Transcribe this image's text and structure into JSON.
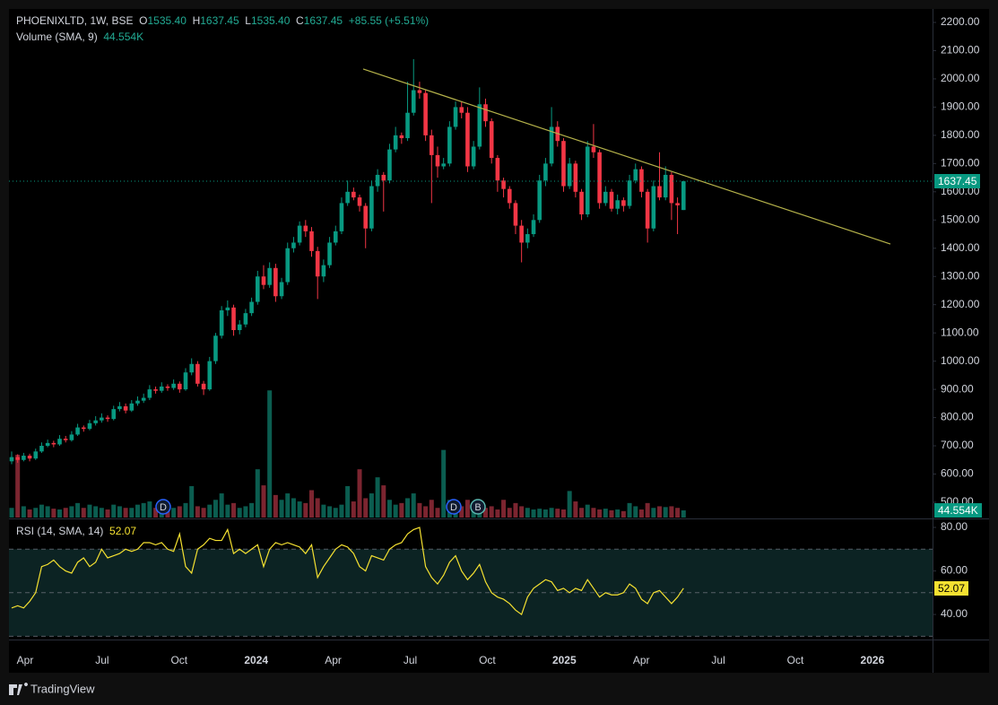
{
  "chart_data": {
    "type": "candlestick",
    "header": {
      "symbol": "PHOENIXLTD, 1W, BSE",
      "o": "O",
      "open": "1535.40",
      "h": "H",
      "high": "1637.45",
      "l": "L",
      "low": "1535.40",
      "c": "C",
      "close": "1637.45",
      "change": "+85.55 (+5.51%)"
    },
    "volume_label": "Volume (SMA, 9)",
    "volume_value_label": "44.554K",
    "rsi_label": "RSI (14, SMA, 14)",
    "x_labels": [
      "Apr",
      "Jul",
      "Oct",
      "2024",
      "Apr",
      "Jul",
      "Oct",
      "2025",
      "Apr",
      "Jul",
      "Oct",
      "2026"
    ],
    "event_markers": [
      "D",
      "D",
      "B"
    ],
    "footer": "TradingView",
    "ylim": [
      445.9,
      2247.7
    ],
    "yticks": [
      {
        "value": 2200,
        "label": "2200.00"
      },
      {
        "value": 2100,
        "label": "2100.00"
      },
      {
        "value": 2000,
        "label": "2000.00"
      },
      {
        "value": 1900,
        "label": "1900.00"
      },
      {
        "value": 1800,
        "label": "1800.00"
      },
      {
        "value": 1700,
        "label": "1700.00"
      },
      {
        "value": 1600,
        "label": "1600.00"
      },
      {
        "value": 1500,
        "label": "1500.00"
      },
      {
        "value": 1400,
        "label": "1400.00"
      },
      {
        "value": 1300,
        "label": "1300.00"
      },
      {
        "value": 1200,
        "label": "1200.00"
      },
      {
        "value": 1100,
        "label": "1100.00"
      },
      {
        "value": 1000,
        "label": "1000.00"
      },
      {
        "value": 900,
        "label": "900.00"
      },
      {
        "value": 800,
        "label": "800.00"
      },
      {
        "value": 700,
        "label": "700.00"
      },
      {
        "value": 600,
        "label": "600.00"
      },
      {
        "value": 500,
        "label": "500.00"
      }
    ],
    "up_color": "#089981",
    "down_color": "#f23645",
    "trendline": [
      2035,
      1415
    ],
    "ohlc": [
      [
        645,
        680,
        635,
        660
      ],
      [
        660,
        670,
        640,
        650
      ],
      [
        650,
        675,
        645,
        665
      ],
      [
        665,
        672,
        645,
        655
      ],
      [
        655,
        690,
        650,
        680
      ],
      [
        680,
        712,
        675,
        700
      ],
      [
        700,
        722,
        695,
        710
      ],
      [
        710,
        718,
        695,
        705
      ],
      [
        705,
        738,
        700,
        725
      ],
      [
        725,
        735,
        712,
        720
      ],
      [
        720,
        752,
        715,
        740
      ],
      [
        740,
        778,
        735,
        765
      ],
      [
        765,
        772,
        750,
        760
      ],
      [
        760,
        792,
        755,
        780
      ],
      [
        780,
        805,
        772,
        790
      ],
      [
        790,
        815,
        782,
        800
      ],
      [
        800,
        808,
        785,
        795
      ],
      [
        795,
        842,
        790,
        830
      ],
      [
        830,
        855,
        822,
        840
      ],
      [
        840,
        850,
        815,
        825
      ],
      [
        825,
        862,
        820,
        850
      ],
      [
        850,
        875,
        842,
        860
      ],
      [
        860,
        885,
        852,
        870
      ],
      [
        870,
        915,
        862,
        900
      ],
      [
        900,
        910,
        885,
        895
      ],
      [
        895,
        925,
        888,
        910
      ],
      [
        910,
        918,
        895,
        905
      ],
      [
        905,
        935,
        898,
        920
      ],
      [
        920,
        928,
        888,
        900
      ],
      [
        900,
        975,
        895,
        960
      ],
      [
        960,
        1010,
        950,
        990
      ],
      [
        990,
        1000,
        910,
        920
      ],
      [
        920,
        930,
        880,
        900
      ],
      [
        900,
        1015,
        895,
        1000
      ],
      [
        1000,
        1100,
        990,
        1090
      ],
      [
        1090,
        1195,
        1080,
        1180
      ],
      [
        1180,
        1215,
        1160,
        1190
      ],
      [
        1190,
        1200,
        1090,
        1110
      ],
      [
        1110,
        1145,
        1095,
        1130
      ],
      [
        1130,
        1185,
        1120,
        1170
      ],
      [
        1170,
        1225,
        1160,
        1210
      ],
      [
        1210,
        1320,
        1200,
        1300
      ],
      [
        1300,
        1340,
        1255,
        1270
      ],
      [
        1270,
        1350,
        1260,
        1330
      ],
      [
        1330,
        1345,
        1210,
        1230
      ],
      [
        1230,
        1295,
        1220,
        1280
      ],
      [
        1280,
        1420,
        1270,
        1400
      ],
      [
        1400,
        1440,
        1385,
        1420
      ],
      [
        1420,
        1495,
        1410,
        1480
      ],
      [
        1480,
        1500,
        1440,
        1460
      ],
      [
        1460,
        1475,
        1370,
        1390
      ],
      [
        1390,
        1405,
        1220,
        1300
      ],
      [
        1300,
        1360,
        1280,
        1340
      ],
      [
        1340,
        1440,
        1330,
        1420
      ],
      [
        1420,
        1480,
        1410,
        1460
      ],
      [
        1460,
        1580,
        1450,
        1560
      ],
      [
        1560,
        1640,
        1550,
        1600
      ],
      [
        1600,
        1615,
        1570,
        1580
      ],
      [
        1580,
        1590,
        1530,
        1550
      ],
      [
        1550,
        1560,
        1400,
        1470
      ],
      [
        1470,
        1640,
        1460,
        1620
      ],
      [
        1620,
        1680,
        1600,
        1660
      ],
      [
        1660,
        1670,
        1530,
        1640
      ],
      [
        1640,
        1770,
        1630,
        1750
      ],
      [
        1750,
        1830,
        1740,
        1800
      ],
      [
        1800,
        1810,
        1770,
        1790
      ],
      [
        1790,
        1990,
        1780,
        1880
      ],
      [
        1880,
        2070,
        1870,
        1960
      ],
      [
        1960,
        1990,
        1930,
        1950
      ],
      [
        1950,
        1960,
        1780,
        1800
      ],
      [
        1800,
        1820,
        1560,
        1730
      ],
      [
        1730,
        1760,
        1650,
        1690
      ],
      [
        1690,
        1720,
        1680,
        1700
      ],
      [
        1700,
        1850,
        1690,
        1830
      ],
      [
        1830,
        1920,
        1820,
        1900
      ],
      [
        1900,
        1920,
        1860,
        1880
      ],
      [
        1880,
        1900,
        1670,
        1690
      ],
      [
        1690,
        1780,
        1680,
        1760
      ],
      [
        1760,
        1970,
        1750,
        1910
      ],
      [
        1910,
        1930,
        1830,
        1850
      ],
      [
        1850,
        1860,
        1700,
        1720
      ],
      [
        1720,
        1730,
        1600,
        1640
      ],
      [
        1640,
        1650,
        1580,
        1610
      ],
      [
        1610,
        1620,
        1540,
        1560
      ],
      [
        1560,
        1570,
        1450,
        1480
      ],
      [
        1480,
        1500,
        1350,
        1420
      ],
      [
        1420,
        1470,
        1400,
        1450
      ],
      [
        1450,
        1520,
        1440,
        1500
      ],
      [
        1500,
        1660,
        1490,
        1640
      ],
      [
        1640,
        1720,
        1620,
        1700
      ],
      [
        1700,
        1900,
        1690,
        1830
      ],
      [
        1830,
        1850,
        1760,
        1780
      ],
      [
        1780,
        1790,
        1600,
        1620
      ],
      [
        1620,
        1720,
        1610,
        1700
      ],
      [
        1700,
        1710,
        1580,
        1600
      ],
      [
        1600,
        1610,
        1500,
        1520
      ],
      [
        1520,
        1780,
        1510,
        1760
      ],
      [
        1760,
        1840,
        1720,
        1740
      ],
      [
        1740,
        1750,
        1540,
        1560
      ],
      [
        1560,
        1620,
        1550,
        1600
      ],
      [
        1600,
        1610,
        1530,
        1540
      ],
      [
        1540,
        1590,
        1520,
        1570
      ],
      [
        1570,
        1580,
        1530,
        1550
      ],
      [
        1550,
        1660,
        1540,
        1640
      ],
      [
        1640,
        1700,
        1630,
        1680
      ],
      [
        1680,
        1690,
        1580,
        1600
      ],
      [
        1600,
        1610,
        1420,
        1470
      ],
      [
        1470,
        1640,
        1460,
        1620
      ],
      [
        1620,
        1740,
        1570,
        1580
      ],
      [
        1580,
        1690,
        1570,
        1660
      ],
      [
        1660,
        1670,
        1500,
        1560
      ],
      [
        1560,
        1580,
        1450,
        1551.9
      ],
      [
        1535.4,
        1637.45,
        1535.4,
        1637.45
      ]
    ],
    "volume_ylim": [
      0,
      3160
    ],
    "volume": [
      60,
      390,
      70,
      50,
      60,
      80,
      70,
      55,
      50,
      60,
      70,
      90,
      60,
      80,
      70,
      60,
      50,
      80,
      70,
      60,
      60,
      80,
      90,
      100,
      60,
      50,
      40,
      60,
      70,
      90,
      195,
      70,
      60,
      80,
      110,
      150,
      80,
      90,
      60,
      70,
      90,
      300,
      200,
      790,
      140,
      110,
      150,
      120,
      100,
      90,
      170,
      120,
      80,
      70,
      60,
      80,
      195,
      100,
      300,
      120,
      150,
      250,
      200,
      110,
      80,
      90,
      120,
      150,
      90,
      70,
      110,
      60,
      420,
      110,
      90,
      70,
      110,
      60,
      90,
      60,
      70,
      50,
      110,
      60,
      90,
      70,
      60,
      50,
      55,
      50,
      60,
      55,
      50,
      165,
      100,
      60,
      80,
      60,
      50,
      55,
      45,
      50,
      40,
      90,
      70,
      50,
      90,
      60,
      70,
      65,
      70,
      60,
      44.554
    ],
    "rsi_ylim": [
      28.9,
      83.3
    ],
    "rsi_yticks": [
      {
        "value": 80,
        "label": "80.00"
      },
      {
        "value": 60,
        "label": "60.00"
      },
      {
        "value": 40,
        "label": "40.00"
      }
    ],
    "rsi_bands": [
      70,
      50,
      30
    ],
    "rsi_color": "#f5e131",
    "rsi": [
      43,
      44,
      43,
      46,
      50,
      62,
      63,
      65,
      62,
      60,
      59,
      64,
      66,
      62,
      64,
      70,
      66,
      67,
      68,
      70,
      69,
      70,
      73,
      73,
      72,
      73,
      70,
      69,
      77,
      62,
      59,
      70,
      72,
      75,
      74,
      74,
      79,
      68,
      70,
      68,
      70,
      72,
      62,
      70,
      73,
      72,
      73,
      72,
      71,
      68,
      72,
      57,
      62,
      66,
      70,
      72,
      71,
      68,
      62,
      60,
      67,
      66,
      65,
      70,
      72,
      73,
      77,
      79,
      80,
      62,
      57,
      54,
      58,
      64,
      67,
      60,
      56,
      59,
      63,
      55,
      50,
      48,
      47,
      45,
      42,
      40,
      48,
      52,
      54,
      56,
      55,
      51,
      52,
      50,
      52,
      51,
      56,
      52,
      48,
      50,
      49,
      49,
      50,
      54,
      52,
      47,
      45,
      50,
      51,
      48,
      45,
      48,
      52.07
    ]
  }
}
